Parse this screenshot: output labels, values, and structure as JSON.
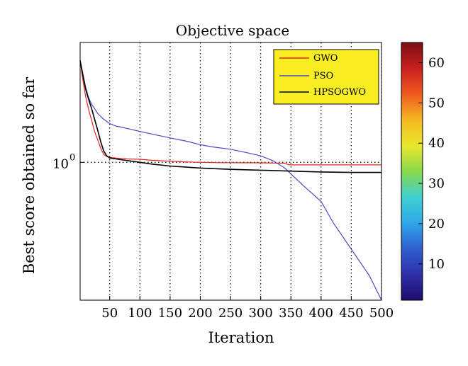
{
  "chart_data": {
    "type": "line",
    "title": "Objective space",
    "xlabel": "Iteration",
    "ylabel": "Best score obtained so far",
    "x_ticks": [
      50,
      100,
      150,
      200,
      250,
      300,
      350,
      400,
      450,
      500
    ],
    "y_scale": "log",
    "y_tick_labels": [
      {
        "base": "10",
        "exponent": "0",
        "value": 1
      }
    ],
    "xlim": [
      1,
      500
    ],
    "ylim": [
      0.02,
      30
    ],
    "grid": "vertical dotted at x ticks, horizontal dotted at 10^0",
    "legend_position": "top-right",
    "series": [
      {
        "name": "GWO",
        "color": "#e8231f",
        "x": [
          1,
          5,
          10,
          15,
          20,
          25,
          30,
          35,
          40,
          45,
          50,
          60,
          80,
          100,
          120,
          150,
          180,
          200,
          230,
          250,
          280,
          300,
          320,
          340,
          345,
          350,
          400,
          450,
          500
        ],
        "y": [
          18,
          11,
          6.5,
          4.5,
          3.3,
          2.4,
          1.9,
          1.5,
          1.25,
          1.18,
          1.15,
          1.13,
          1.1,
          1.09,
          1.06,
          1.03,
          1.01,
          1.0,
          0.99,
          0.99,
          0.985,
          0.985,
          0.98,
          0.975,
          0.94,
          0.93,
          0.93,
          0.93,
          0.93
        ]
      },
      {
        "name": "PSO",
        "color": "#4a4ac8",
        "x": [
          1,
          5,
          10,
          15,
          20,
          25,
          30,
          40,
          50,
          60,
          80,
          100,
          130,
          150,
          180,
          200,
          220,
          250,
          280,
          300,
          320,
          340,
          350,
          370,
          400,
          420,
          450,
          480,
          500
        ],
        "y": [
          18,
          13,
          8.5,
          6.3,
          5.2,
          4.6,
          4.0,
          3.4,
          3.0,
          2.8,
          2.6,
          2.4,
          2.15,
          2.0,
          1.8,
          1.65,
          1.55,
          1.45,
          1.3,
          1.2,
          1.05,
          0.85,
          0.72,
          0.52,
          0.33,
          0.18,
          0.085,
          0.04,
          0.02
        ]
      },
      {
        "name": "HPSOGWO",
        "color": "#000000",
        "x": [
          1,
          5,
          10,
          15,
          20,
          25,
          30,
          35,
          40,
          45,
          50,
          60,
          80,
          100,
          120,
          150,
          200,
          250,
          300,
          350,
          400,
          450,
          500
        ],
        "y": [
          18,
          12.5,
          8.0,
          6.0,
          4.6,
          3.4,
          2.5,
          1.8,
          1.38,
          1.2,
          1.13,
          1.1,
          1.05,
          1.0,
          0.95,
          0.9,
          0.85,
          0.82,
          0.8,
          0.78,
          0.76,
          0.75,
          0.75
        ]
      }
    ],
    "colorbar": {
      "ticks": [
        10,
        20,
        30,
        40,
        50,
        60
      ],
      "range": [
        1,
        65
      ],
      "colors": [
        "#1b0d6b",
        "#2f2fa8",
        "#2f5fd0",
        "#2fa8e8",
        "#3fd0d0",
        "#8ad84a",
        "#e8e82a",
        "#f5b820",
        "#ef5a20",
        "#c81e1e",
        "#7a1010"
      ]
    }
  }
}
